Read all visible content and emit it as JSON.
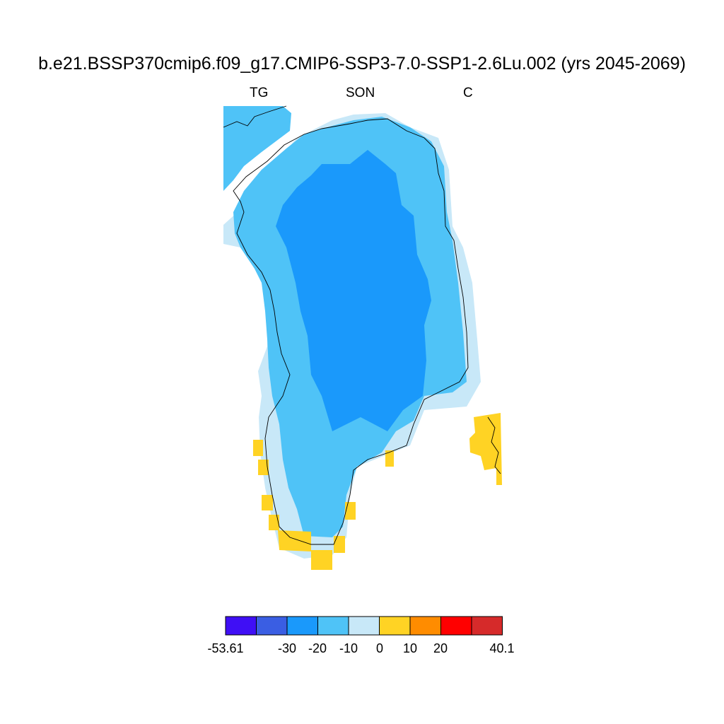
{
  "title": "b.e21.BSSP370cmip6.f09_g17.CMIP6-SSP3-7.0-SSP1-2.6Lu.002 (yrs 2045-2069)",
  "left_label": "TG",
  "center_label": "SON",
  "right_label": "C",
  "colorbar": {
    "colors": [
      "#3f0ff5",
      "#3a5ee3",
      "#1a99fb",
      "#4fc3f7",
      "#c8e8f8",
      "#ffd324",
      "#ff8c00",
      "#ff0000",
      "#d62a2a"
    ],
    "labels": [
      "-53.61",
      "-30",
      "-20",
      "-10",
      "0",
      "10",
      "20",
      "40.1"
    ]
  },
  "map": {
    "region": "Greenland",
    "bin_colors": {
      "-30 to -20": "#1a99fb",
      "-20 to -10": "#4fc3f7",
      "-10 to 0": "#c8e8f8",
      "0 to 10": "#ffd324"
    }
  }
}
